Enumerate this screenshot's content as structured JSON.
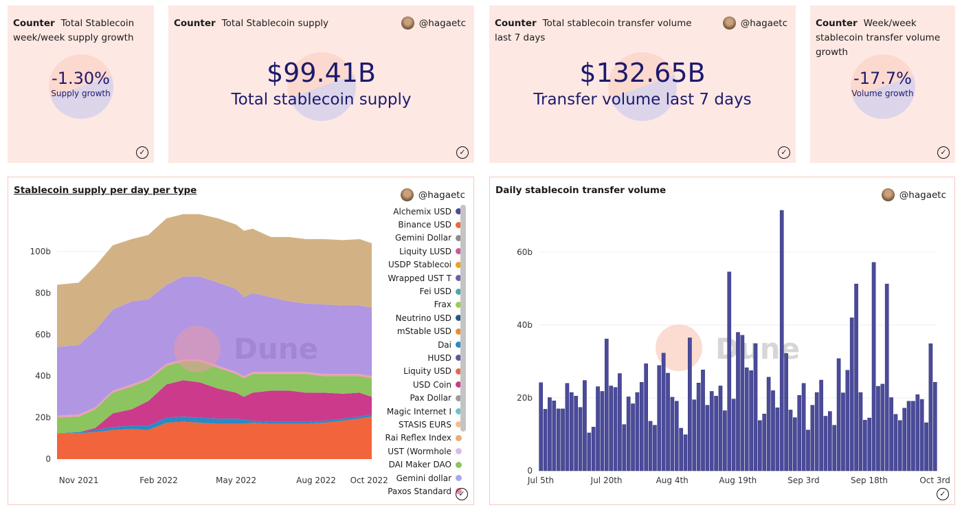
{
  "user": "@hagaetc",
  "counters": [
    {
      "kind": "Counter",
      "title": "Total Stablecoin week/week supply growth",
      "value": "-1.30%",
      "label": "Supply growth",
      "show_user": false
    },
    {
      "kind": "Counter",
      "title": "Total Stablecoin supply",
      "value": "$99.41B",
      "label": "Total stablecoin supply",
      "show_user": true
    },
    {
      "kind": "Counter",
      "title": "Total stablecoin transfer volume last 7 days",
      "value": "$132.65B",
      "label": "Transfer volume last 7 days",
      "show_user": true
    },
    {
      "kind": "Counter",
      "title": "Week/week stablecoin transfer volume growth",
      "value": "-17.7%",
      "label": "Volume growth",
      "show_user": false
    }
  ],
  "watermark": "Dune",
  "colors": {
    "card_bg": "#fde8e4",
    "value": "#1c1a6b",
    "bar": "#4b4b9a"
  },
  "chart_data": [
    {
      "type": "area",
      "stacked": true,
      "title": "Stablecoin supply per day per type",
      "x": [
        "2021-10-07",
        "2021-11-01",
        "2021-11-20",
        "2021-12-10",
        "2022-01-01",
        "2022-01-20",
        "2022-02-10",
        "2022-03-01",
        "2022-03-20",
        "2022-04-10",
        "2022-05-01",
        "2022-05-10",
        "2022-05-20",
        "2022-06-10",
        "2022-07-01",
        "2022-07-20",
        "2022-08-10",
        "2022-09-01",
        "2022-09-20",
        "2022-10-04"
      ],
      "xticks": [
        "Nov 2021",
        "Feb 2022",
        "May 2022",
        "Aug 2022",
        "Oct 2022"
      ],
      "xtick_dates": [
        "2021-11-01",
        "2022-02-01",
        "2022-05-01",
        "2022-08-01",
        "2022-10-01"
      ],
      "yticks": [
        "0",
        "20b",
        "40b",
        "60b",
        "80b",
        "100b"
      ],
      "ytick_values": [
        0,
        20,
        40,
        60,
        80,
        100
      ],
      "ylim": [
        -3,
        120
      ],
      "unit": "b",
      "series": [
        {
          "name": "Binance USD",
          "color": "#f2643c",
          "values": [
            12.5,
            12.5,
            13,
            14,
            14.5,
            14,
            17.5,
            18,
            17.5,
            17,
            17,
            17,
            17.5,
            17,
            17,
            17,
            17.5,
            18.5,
            19.5,
            20.5
          ]
        },
        {
          "name": "Dai",
          "color": "#2a8ac4",
          "values": [
            0,
            0.5,
            1,
            1.5,
            1.5,
            2,
            2.5,
            2.5,
            2.5,
            2.5,
            2.5,
            2,
            1,
            1,
            1,
            1,
            1,
            1,
            1,
            1
          ]
        },
        {
          "name": "USD Coin",
          "color": "#cc3a8c",
          "values": [
            0,
            0,
            1,
            6.5,
            8,
            12,
            16,
            17.5,
            17,
            14.5,
            12.5,
            11,
            13.5,
            15,
            15,
            14,
            13.5,
            12,
            11.5,
            8.5
          ]
        },
        {
          "name": "DAI Maker DAO",
          "color": "#8cc460",
          "values": [
            7.5,
            7.5,
            9,
            10,
            11,
            10,
            9,
            9,
            10,
            10,
            9,
            9,
            9,
            8,
            8,
            9,
            8,
            8.5,
            8,
            9
          ]
        },
        {
          "name": "Liquity LUSD",
          "color": "#eba0b4",
          "values": [
            1,
            1,
            1,
            1,
            1,
            1,
            1,
            1,
            1,
            1,
            1,
            1,
            1,
            1,
            1,
            1,
            1,
            1,
            1,
            1
          ]
        },
        {
          "color": "#b196e3",
          "values": [
            33,
            33.5,
            37,
            39,
            40,
            38,
            38,
            40,
            40,
            40,
            40,
            38,
            38,
            36,
            34,
            33,
            33.5,
            33,
            33,
            33
          ]
        },
        {
          "color": "#d2b285",
          "values": [
            30,
            30,
            31,
            31,
            30,
            31,
            32,
            30,
            30,
            31,
            31,
            32,
            31,
            29,
            31,
            31,
            31.5,
            31.5,
            32,
            31
          ]
        }
      ],
      "legend": [
        {
          "name": "Alchemix USD",
          "color": "#4b4b9a"
        },
        {
          "name": "Binance USD",
          "color": "#f2643c"
        },
        {
          "name": "Gemini Dollar",
          "color": "#8c8c8c"
        },
        {
          "name": "Liquity LUSD",
          "color": "#cc5a9c"
        },
        {
          "name": "USDP Stablecoi",
          "color": "#eca21c"
        },
        {
          "name": "Wrapped UST T",
          "color": "#6a62a8"
        },
        {
          "name": "Fei USD",
          "color": "#4aa8a8"
        },
        {
          "name": "Frax",
          "color": "#9ccc4c"
        },
        {
          "name": "Neutrino USD",
          "color": "#2a5a7a"
        },
        {
          "name": "mStable USD",
          "color": "#ec8a2c"
        },
        {
          "name": "Dai",
          "color": "#2a8ac4"
        },
        {
          "name": "HUSD",
          "color": "#5a5a9a"
        },
        {
          "name": "Liquity USD",
          "color": "#e8684c"
        },
        {
          "name": "USD Coin",
          "color": "#cc3a8c"
        },
        {
          "name": "Pax Dollar",
          "color": "#9c9c9c"
        },
        {
          "name": "Magic Internet I",
          "color": "#6ac4cc"
        },
        {
          "name": "STASIS EURS",
          "color": "#f8bc8c"
        },
        {
          "name": "Rai Reflex Index",
          "color": "#f0a878"
        },
        {
          "name": "UST (Wormhole",
          "color": "#d8bce8"
        },
        {
          "name": "DAI Maker DAO",
          "color": "#8cc460"
        },
        {
          "name": "Gemini dollar",
          "color": "#aaa8ec"
        },
        {
          "name": "Paxos Standard",
          "color": "#ec8aa8"
        }
      ],
      "legend_position": "right",
      "grid": true
    },
    {
      "type": "bar",
      "title": "Daily stablecoin transfer volume",
      "x_start": "Jul 5th",
      "x_end": "Oct 3rd",
      "xticks": [
        "Jul 5th",
        "Jul 20th",
        "Aug 4th",
        "Aug 19th",
        "Sep 3rd",
        "Sep 18th",
        "Oct 3rd"
      ],
      "yticks": [
        "0",
        "20b",
        "40b",
        "60b"
      ],
      "ytick_values": [
        0,
        20,
        40,
        60
      ],
      "ylim": [
        0,
        72
      ],
      "unit": "b",
      "grid": true,
      "values": [
        24.2,
        16.9,
        20.1,
        19.2,
        17,
        17,
        24,
        21.5,
        20.5,
        17.4,
        24.8,
        10.4,
        12,
        23.1,
        21.8,
        36.2,
        23.3,
        22.9,
        26.7,
        12.7,
        20.3,
        18.4,
        21.5,
        24.3,
        29.4,
        13.6,
        12.5,
        28.9,
        32.3,
        26.8,
        20.2,
        19.1,
        11.7,
        9.9,
        36.5,
        19.5,
        24.1,
        27.7,
        18,
        21.8,
        20.5,
        23.3,
        16.5,
        54.6,
        19.7,
        38,
        37.2,
        28.3,
        27.5,
        34.9,
        13.8,
        15.6,
        25.7,
        22,
        17.3,
        71.5,
        32.2,
        16.7,
        14.6,
        20.7,
        24,
        11.2,
        18,
        21.5,
        24.9,
        15,
        16.3,
        12.5,
        30.8,
        21.4,
        27.6,
        42,
        51.3,
        21.5,
        13.9,
        14.5,
        57.2,
        23.2,
        23.8,
        51.3,
        20.1,
        15.5,
        13.8,
        17.2,
        19.1,
        19.1,
        20.9,
        19.6,
        13.2,
        34.9,
        24.3
      ]
    }
  ]
}
